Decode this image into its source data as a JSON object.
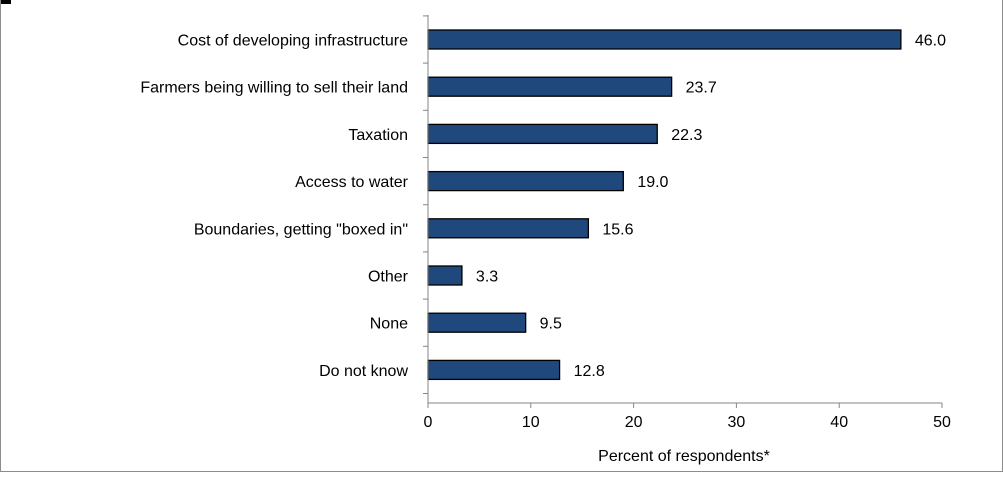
{
  "chart_data": {
    "type": "bar",
    "orientation": "horizontal",
    "categories": [
      "Cost of developing infrastructure",
      "Farmers being willing to sell their land",
      "Taxation",
      "Access to water",
      "Boundaries, getting \"boxed in\"",
      "Other",
      "None",
      "Do not know"
    ],
    "values": [
      46.0,
      23.7,
      22.3,
      19.0,
      15.6,
      3.3,
      9.5,
      12.8
    ],
    "value_labels": [
      "46.0",
      "23.7",
      "22.3",
      "19.0",
      "15.6",
      "3.3",
      "9.5",
      "12.8"
    ],
    "xlabel": "Percent of respondents*",
    "ylabel": "",
    "xlim": [
      0,
      50
    ],
    "xticks": [
      0,
      10,
      20,
      30,
      40,
      50
    ],
    "grid": false,
    "bar_color": "#1f497d",
    "bar_border_color": "#000000"
  }
}
